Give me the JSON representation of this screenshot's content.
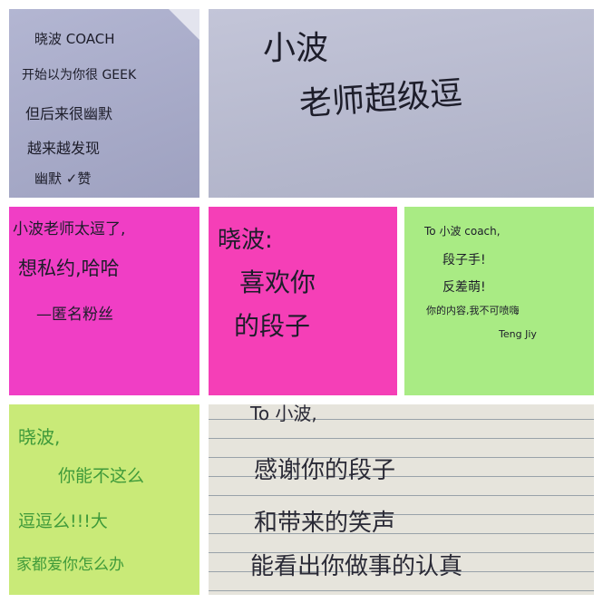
{
  "colors": {
    "background": "#ffffff",
    "note_blue": "#a9acc9",
    "note_gray": "#b9bcd0",
    "note_magenta": "#f03ec5",
    "note_pink": "#f53fb7",
    "note_green": "#a9eb84",
    "note_yellow_green": "#c9ea78",
    "note_lined": "#e6e4dc",
    "ink_black": "#1d1d2a",
    "ink_green": "#3f9a3a"
  },
  "notes": [
    {
      "lines": [
        "晓波 COACH",
        "开始以为你很 GEEK",
        "但后来很幽默",
        "越来越发现",
        "幽默 ✓赞"
      ]
    },
    {
      "lines": [
        "小波",
        "老师超级逗"
      ]
    },
    {
      "lines": [
        "小波老师太逗了,",
        "想私约,哈哈",
        "—匿名粉丝"
      ]
    },
    {
      "lines": [
        "晓波:",
        "喜欢你",
        "的段子"
      ]
    },
    {
      "lines": [
        "To 小波 coach,",
        "段子手!",
        "反差萌!",
        "你的内容,我不可喷嗨",
        "Teng Jiy"
      ]
    },
    {
      "lines": [
        "晓波,",
        "你能不这么",
        "逗逗么!!!大",
        "家都爱你怎么办"
      ]
    },
    {
      "lines": [
        "To 小波,",
        "感谢你的段子",
        "和带来的笑声",
        "能看出你做事的认真"
      ]
    }
  ]
}
